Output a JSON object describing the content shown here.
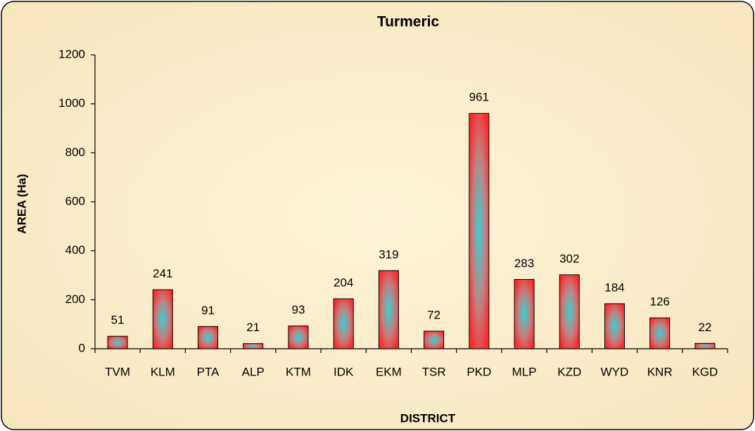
{
  "chart_data": {
    "type": "bar",
    "title": "Turmeric",
    "x_label": "DISTRICT",
    "y_label": "AREA (Ha)",
    "categories": [
      "TVM",
      "KLM",
      "PTA",
      "ALP",
      "KTM",
      "IDK",
      "EKM",
      "TSR",
      "PKD",
      "MLP",
      "KZD",
      "WYD",
      "KNR",
      "KGD"
    ],
    "values": [
      51,
      241,
      91,
      21,
      93,
      204,
      319,
      72,
      961,
      283,
      302,
      184,
      126,
      22
    ],
    "color": "#ff2a2a",
    "ylim": [
      0,
      1200
    ],
    "yticks": [
      0,
      200,
      400,
      600,
      800,
      1000,
      1200
    ],
    "grid": false
  }
}
